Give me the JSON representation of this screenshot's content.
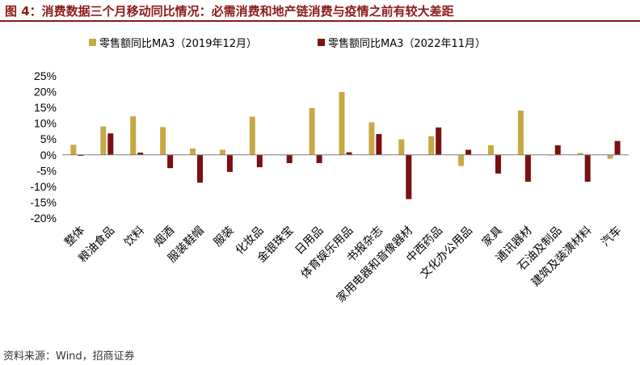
{
  "title": "图 4：消费数据三个月移动同比情况：必需消费和地产链消费与疫情之前有较大差距",
  "source": "资料来源：Wind，招商证券",
  "colors": {
    "series1": "#C8A845",
    "series2": "#7A1010",
    "title": "#8B1A1A"
  },
  "chart_data": {
    "type": "bar",
    "categories": [
      "整体",
      "粮油食品",
      "饮料",
      "烟酒",
      "服装鞋帽",
      "服装",
      "化妆品",
      "金银珠宝",
      "日用品",
      "体育娱乐用品",
      "书报杂志",
      "家用电器和音像器材",
      "中西药品",
      "文化办公用品",
      "家具",
      "通讯器材",
      "石油及制品",
      "建筑及装潢材料",
      "汽车"
    ],
    "series": [
      {
        "name": "零售额同比MA3（2019年12月）",
        "values": [
          3.2,
          9.0,
          12.2,
          8.8,
          2.0,
          1.6,
          12.1,
          -0.1,
          14.8,
          19.9,
          10.3,
          4.9,
          5.9,
          -3.5,
          3.0,
          14.0,
          -0.2,
          0.6,
          -1.2
        ]
      },
      {
        "name": "零售额同比MA3（2022年11月）",
        "values": [
          -0.3,
          6.8,
          0.7,
          -4.2,
          -8.8,
          -5.4,
          -3.9,
          -2.6,
          -2.6,
          0.8,
          6.6,
          -14.0,
          8.7,
          1.6,
          -5.9,
          -8.5,
          3.0,
          -8.5,
          4.4
        ]
      }
    ],
    "y_ticks": [
      "25%",
      "20%",
      "15%",
      "10%",
      "5%",
      "0%",
      "-5%",
      "-10%",
      "-15%",
      "-20%"
    ],
    "ylim": [
      -20,
      25
    ],
    "legend": "top-center",
    "grid": false
  }
}
